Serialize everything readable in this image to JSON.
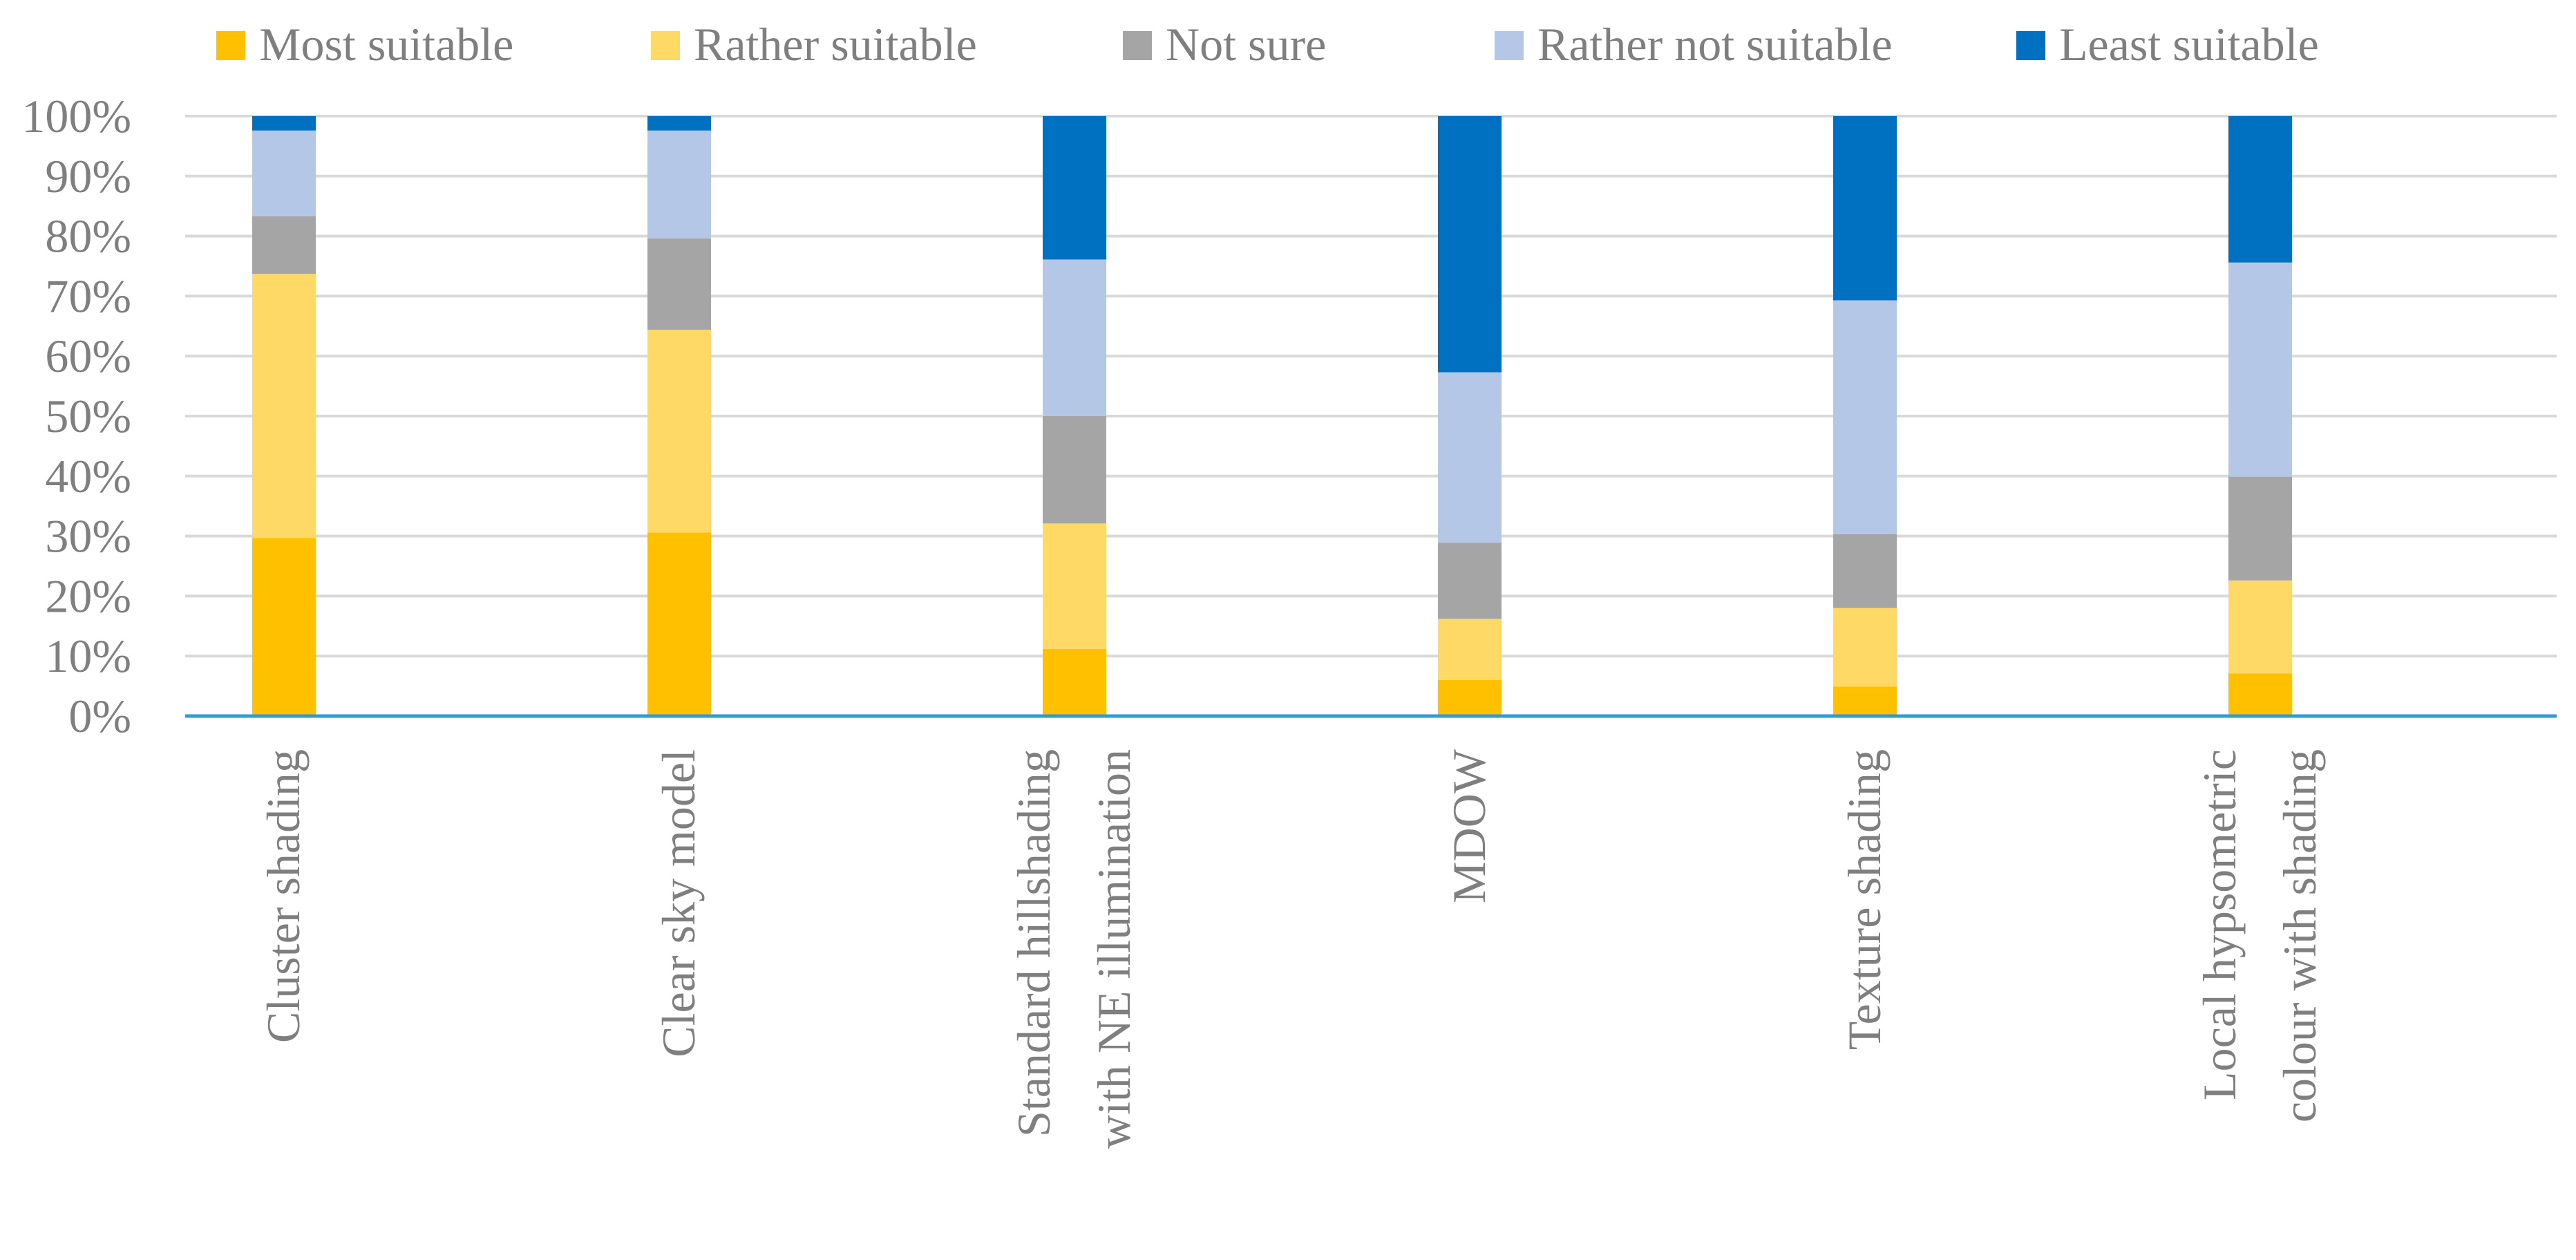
{
  "chart_data": {
    "type": "bar",
    "stacked": true,
    "percent": true,
    "title": "",
    "xlabel": "",
    "ylabel": "",
    "ylim": [
      0,
      100
    ],
    "yticks": [
      {
        "value": 0,
        "label": "0%"
      },
      {
        "value": 10,
        "label": "10%"
      },
      {
        "value": 20,
        "label": "20%"
      },
      {
        "value": 30,
        "label": "30%"
      },
      {
        "value": 40,
        "label": "40%"
      },
      {
        "value": 50,
        "label": "50%"
      },
      {
        "value": 60,
        "label": "60%"
      },
      {
        "value": 70,
        "label": "70%"
      },
      {
        "value": 80,
        "label": "80%"
      },
      {
        "value": 90,
        "label": "90%"
      },
      {
        "value": 100,
        "label": "100%"
      }
    ],
    "grid": true,
    "legend_position": "top",
    "categories": [
      {
        "id": "cluster-shading",
        "lines": [
          "Cluster shading"
        ]
      },
      {
        "id": "clear-sky-model",
        "lines": [
          "Clear sky model"
        ]
      },
      {
        "id": "standard-hillshading",
        "lines": [
          "Standard hillshading",
          "with NE illumination"
        ]
      },
      {
        "id": "mdow",
        "lines": [
          "MDOW"
        ]
      },
      {
        "id": "texture-shading",
        "lines": [
          "Texture shading"
        ]
      },
      {
        "id": "local-hypsometric",
        "lines": [
          "Local hypsometric",
          "colour with shading"
        ]
      }
    ],
    "series": [
      {
        "name": "Most suitable",
        "color": "#FFC000",
        "values": [
          29.7,
          30.6,
          11.2,
          6.0,
          4.9,
          7.1
        ]
      },
      {
        "name": "Rather suitable",
        "color": "#FFD966",
        "values": [
          44.0,
          33.8,
          20.9,
          10.2,
          13.1,
          15.5
        ]
      },
      {
        "name": "Not sure",
        "color": "#A5A5A5",
        "values": [
          9.6,
          15.2,
          17.9,
          12.7,
          12.3,
          17.3
        ]
      },
      {
        "name": "Rather not suitable",
        "color": "#B4C7E7",
        "values": [
          14.3,
          18.0,
          26.1,
          28.4,
          39.0,
          35.7
        ]
      },
      {
        "name": "Least suitable",
        "color": "#0070C0",
        "values": [
          2.4,
          2.4,
          23.9,
          42.7,
          30.7,
          24.4
        ]
      }
    ]
  },
  "colors": {
    "gridline": "#D9D9D9",
    "axis": "#2E9BD6",
    "text": "#7F7F7F"
  }
}
